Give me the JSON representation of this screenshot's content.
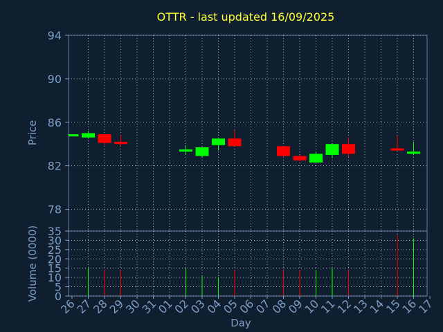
{
  "chart_data": {
    "type": "candlestick",
    "title": "OTTR - last updated 16/09/2025",
    "xlabel": "Day",
    "price_panel": {
      "ylabel": "Price",
      "ylim": [
        76,
        94
      ],
      "yticks": [
        94,
        90,
        86,
        82,
        78
      ]
    },
    "volume_panel": {
      "ylabel": "Volume (0000)",
      "ylim": [
        0,
        35
      ],
      "yticks": [
        35,
        30,
        25,
        20,
        15,
        10,
        5,
        0
      ]
    },
    "x_ticks": [
      "26",
      "27",
      "28",
      "29",
      "30",
      "31",
      "01",
      "02",
      "03",
      "04",
      "05",
      "06",
      "07",
      "08",
      "09",
      "10",
      "11",
      "12",
      "13",
      "14",
      "15",
      "16",
      "17"
    ],
    "up_color": "#00ff00",
    "down_color": "#ff0000",
    "candles": [
      {
        "day": "26",
        "open": 84.7,
        "close": 84.9,
        "high": 84.9,
        "low": 84.7,
        "volume": 0
      },
      {
        "day": "27",
        "open": 84.6,
        "close": 85.0,
        "high": 85.2,
        "low": 84.5,
        "volume": 15
      },
      {
        "day": "28",
        "open": 84.9,
        "close": 84.1,
        "high": 84.9,
        "low": 83.9,
        "volume": 14
      },
      {
        "day": "29",
        "open": 84.2,
        "close": 84.0,
        "high": 84.8,
        "low": 83.8,
        "volume": 14
      },
      {
        "day": "02",
        "open": 83.3,
        "close": 83.5,
        "high": 83.9,
        "low": 83.0,
        "volume": 15
      },
      {
        "day": "03",
        "open": 82.9,
        "close": 83.7,
        "high": 83.7,
        "low": 82.8,
        "volume": 11
      },
      {
        "day": "04",
        "open": 83.9,
        "close": 84.5,
        "high": 84.5,
        "low": 83.4,
        "volume": 10
      },
      {
        "day": "05",
        "open": 84.5,
        "close": 83.8,
        "high": 85.3,
        "low": 83.8,
        "volume": 14
      },
      {
        "day": "08",
        "open": 83.8,
        "close": 82.9,
        "high": 83.8,
        "low": 82.7,
        "volume": 14
      },
      {
        "day": "09",
        "open": 82.9,
        "close": 82.5,
        "high": 83.0,
        "low": 82.4,
        "volume": 14
      },
      {
        "day": "10",
        "open": 82.3,
        "close": 83.1,
        "high": 83.3,
        "low": 82.2,
        "volume": 14
      },
      {
        "day": "11",
        "open": 83.0,
        "close": 84.0,
        "high": 84.0,
        "low": 82.7,
        "volume": 15
      },
      {
        "day": "12",
        "open": 84.0,
        "close": 83.1,
        "high": 84.6,
        "low": 82.8,
        "volume": 14
      },
      {
        "day": "15",
        "open": 83.6,
        "close": 83.4,
        "high": 84.8,
        "low": 83.4,
        "volume": 33
      },
      {
        "day": "16",
        "open": 83.1,
        "close": 83.3,
        "high": 84.2,
        "low": 83.0,
        "volume": 31
      }
    ]
  }
}
